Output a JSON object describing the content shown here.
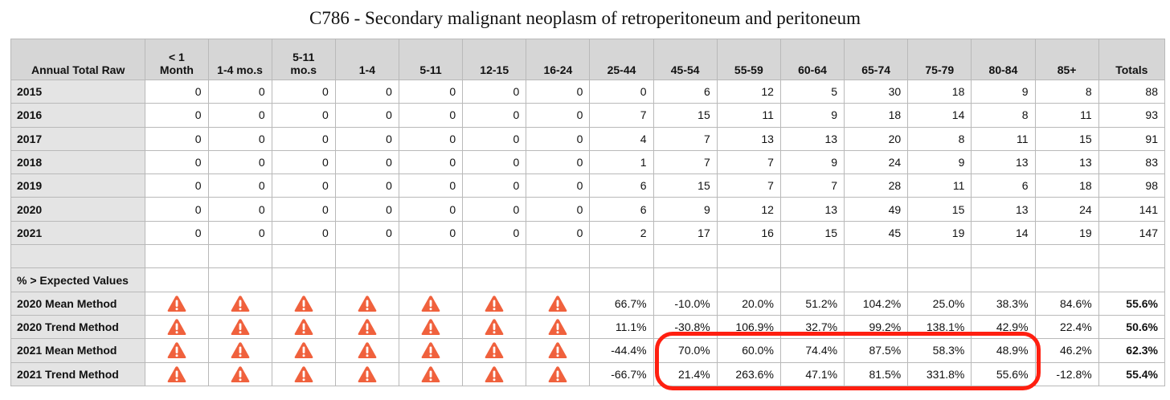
{
  "title": "C786 - Secondary malignant neoplasm of retroperitoneum and peritoneum",
  "header": {
    "row_label": "Annual Total Raw",
    "columns": [
      "< 1\nMonth",
      "1-4 mo.s",
      "5-11\nmo.s",
      "1-4",
      "5-11",
      "12-15",
      "16-24",
      "25-44",
      "45-54",
      "55-59",
      "60-64",
      "65-74",
      "75-79",
      "80-84",
      "85+",
      "Totals"
    ]
  },
  "raw_rows": [
    {
      "label": "2015",
      "values": [
        "0",
        "0",
        "0",
        "0",
        "0",
        "0",
        "0",
        "0",
        "6",
        "12",
        "5",
        "30",
        "18",
        "9",
        "8"
      ],
      "total": "88"
    },
    {
      "label": "2016",
      "values": [
        "0",
        "0",
        "0",
        "0",
        "0",
        "0",
        "0",
        "7",
        "15",
        "11",
        "9",
        "18",
        "14",
        "8",
        "11"
      ],
      "total": "93"
    },
    {
      "label": "2017",
      "values": [
        "0",
        "0",
        "0",
        "0",
        "0",
        "0",
        "0",
        "4",
        "7",
        "13",
        "13",
        "20",
        "8",
        "11",
        "15"
      ],
      "total": "91"
    },
    {
      "label": "2018",
      "values": [
        "0",
        "0",
        "0",
        "0",
        "0",
        "0",
        "0",
        "1",
        "7",
        "7",
        "9",
        "24",
        "9",
        "13",
        "13"
      ],
      "total": "83"
    },
    {
      "label": "2019",
      "values": [
        "0",
        "0",
        "0",
        "0",
        "0",
        "0",
        "0",
        "6",
        "15",
        "7",
        "7",
        "28",
        "11",
        "6",
        "18"
      ],
      "total": "98"
    },
    {
      "label": "2020",
      "values": [
        "0",
        "0",
        "0",
        "0",
        "0",
        "0",
        "0",
        "6",
        "9",
        "12",
        "13",
        "49",
        "15",
        "13",
        "24"
      ],
      "total": "141"
    },
    {
      "label": "2021",
      "values": [
        "0",
        "0",
        "0",
        "0",
        "0",
        "0",
        "0",
        "2",
        "17",
        "16",
        "15",
        "45",
        "19",
        "14",
        "19"
      ],
      "total": "147"
    }
  ],
  "section_label": "% > Expected Values",
  "pct_rows": [
    {
      "label": "2020 Mean Method",
      "warn_count": 7,
      "values": [
        "66.7%",
        "-10.0%",
        "20.0%",
        "51.2%",
        "104.2%",
        "25.0%",
        "38.3%",
        "84.6%"
      ],
      "total": "55.6%"
    },
    {
      "label": "2020 Trend Method",
      "warn_count": 7,
      "values": [
        "11.1%",
        "-30.8%",
        "106.9%",
        "32.7%",
        "99.2%",
        "138.1%",
        "42.9%",
        "22.4%"
      ],
      "total": "50.6%"
    },
    {
      "label": "2021 Mean Method",
      "warn_count": 7,
      "values": [
        "-44.4%",
        "70.0%",
        "60.0%",
        "74.4%",
        "87.5%",
        "58.3%",
        "48.9%",
        "46.2%"
      ],
      "total": "62.3%"
    },
    {
      "label": "2021 Trend Method",
      "warn_count": 7,
      "values": [
        "-66.7%",
        "21.4%",
        "263.6%",
        "47.1%",
        "81.5%",
        "331.8%",
        "55.6%",
        "-12.8%"
      ],
      "total": "55.4%"
    }
  ],
  "icons": {
    "warning": "warning-triangle-icon"
  },
  "colors": {
    "warning_fill": "#f0613d",
    "highlight_border": "#ff1f10",
    "header_bg": "#d6d6d6",
    "label_bg": "#e4e4e4"
  }
}
